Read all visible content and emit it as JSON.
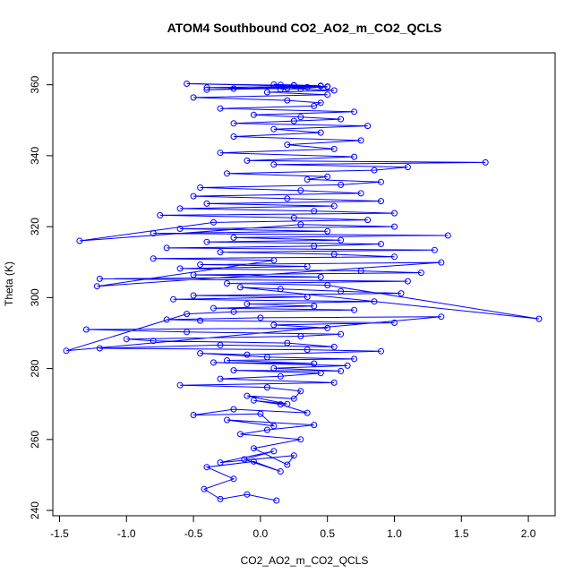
{
  "chart_data": {
    "type": "scatter",
    "title": "ATOM4 Southbound CO2_AO2_m_CO2_QCLS",
    "xlabel": "CO2_AO2_m_CO2_QCLS",
    "ylabel": "Theta (K)",
    "xlim": [
      -1.55,
      2.2
    ],
    "ylim": [
      238.5,
      369
    ],
    "xticks": [
      -1.5,
      -1.0,
      -0.5,
      0.0,
      0.5,
      1.0,
      1.5,
      2.0
    ],
    "xtick_labels": [
      "-1.5",
      "-1.0",
      "-0.5",
      "0.0",
      "0.5",
      "1.0",
      "1.5",
      "2.0"
    ],
    "yticks": [
      240,
      260,
      280,
      300,
      320,
      340,
      360
    ],
    "ytick_labels": [
      "240",
      "260",
      "280",
      "300",
      "320",
      "340",
      "360"
    ],
    "grid": false,
    "series": [
      {
        "style": "line-and-points",
        "marker": "open-circle",
        "color": "#0000ff",
        "x": [
          0.12,
          -0.1,
          -0.3,
          -0.42,
          -0.2,
          -0.4,
          -0.05,
          0.15,
          -0.12,
          0.1,
          -0.3,
          0.25,
          0.2,
          -0.05,
          0.3,
          -0.15,
          0.05,
          0.4,
          -0.25,
          0.1,
          0.0,
          -0.5,
          -0.2,
          0.35,
          0.15,
          -0.05,
          0.2,
          -0.1,
          0.25,
          0.3,
          0.05,
          -0.6,
          0.55,
          -0.3,
          0.15,
          0.45,
          -0.2,
          0.6,
          0.1,
          0.65,
          -0.35,
          0.4,
          -0.25,
          0.7,
          0.05,
          -0.45,
          -0.1,
          0.9,
          0.35,
          -1.2,
          -0.3,
          0.55,
          0.2,
          -0.8,
          -1.0,
          0.3,
          0.6,
          -0.55,
          -1.3,
          0.5,
          0.1,
          1.0,
          -0.45,
          -0.7,
          0.0,
          1.35,
          -1.45,
          -0.55,
          -0.2,
          0.7,
          -0.35,
          0.4,
          -0.1,
          0.85,
          -0.65,
          0.35,
          -0.5,
          1.05,
          0.6,
          0.15,
          -0.15,
          2.08,
          0.5,
          -0.25,
          1.1,
          -1.2,
          0.45,
          -0.5,
          1.2,
          0.75,
          -0.6,
          0.35,
          -0.45,
          1.35,
          -1.22,
          0.1,
          -0.8,
          1.0,
          0.55,
          -0.3,
          1.3,
          -0.7,
          0.4,
          0.9,
          -0.4,
          0.6,
          -0.2,
          1.4,
          -0.8,
          0.5,
          -0.6,
          1.0,
          0.3,
          -1.35,
          -0.35,
          0.8,
          0.25,
          -0.75,
          1.0,
          0.4,
          -0.6,
          0.55,
          -0.4,
          0.9,
          0.2,
          -0.5,
          0.75,
          0.3,
          -0.45,
          0.6,
          0.9,
          0.35,
          0.5,
          -0.25,
          0.85,
          1.1,
          0.1,
          1.68,
          -0.1,
          0.7,
          -0.3,
          0.55,
          0.2,
          0.75,
          -0.2,
          0.45,
          0.1,
          0.8,
          -0.2,
          0.25,
          0.6,
          0.3,
          -0.05,
          0.7,
          -0.3,
          0.4,
          0.45,
          0.2,
          -0.5,
          0.5,
          0.05,
          0.55,
          0.3,
          -0.4,
          0.45,
          0.15,
          0.5,
          -0.2,
          0.35,
          0.1,
          0.45,
          -0.4,
          0.2,
          0.25,
          -0.55,
          0.5,
          0.15,
          0.25
        ],
        "y": [
          242.8,
          244.5,
          243.2,
          246.0,
          248.9,
          252.2,
          253.8,
          251.0,
          254.4,
          256.7,
          253.5,
          255.5,
          252.9,
          257.5,
          260.0,
          261.5,
          262.7,
          264.1,
          265.5,
          263.8,
          267.2,
          266.9,
          268.5,
          267.5,
          269.9,
          271.0,
          270.0,
          272.3,
          271.5,
          273.6,
          274.7,
          275.3,
          276.0,
          277.1,
          277.8,
          278.7,
          279.5,
          279.3,
          280.1,
          280.8,
          281.7,
          281.4,
          282.3,
          282.7,
          283.2,
          284.3,
          283.9,
          284.9,
          285.3,
          285.7,
          286.6,
          286.1,
          287.2,
          287.8,
          288.3,
          289.1,
          289.7,
          290.3,
          291.0,
          291.4,
          292.3,
          292.9,
          293.5,
          293.8,
          294.3,
          294.6,
          285.0,
          295.4,
          296.0,
          296.5,
          297.0,
          297.6,
          298.2,
          298.9,
          299.5,
          300.2,
          300.6,
          301.2,
          301.8,
          302.4,
          302.9,
          294.0,
          303.5,
          304.0,
          304.6,
          305.3,
          305.8,
          306.4,
          307.0,
          307.5,
          308.2,
          308.8,
          309.3,
          309.9,
          303.2,
          310.5,
          311.0,
          311.5,
          312.2,
          312.8,
          313.4,
          314.0,
          314.5,
          315.1,
          315.7,
          316.2,
          316.9,
          317.5,
          318.1,
          318.7,
          319.4,
          320.0,
          320.6,
          316.0,
          321.2,
          321.9,
          322.5,
          323.2,
          323.8,
          324.4,
          325.1,
          325.8,
          326.5,
          327.2,
          327.9,
          328.6,
          329.4,
          330.2,
          331.0,
          331.8,
          332.6,
          333.3,
          334.1,
          335.0,
          335.9,
          336.8,
          337.5,
          338.1,
          338.6,
          339.7,
          340.8,
          341.9,
          343.1,
          344.3,
          345.4,
          346.5,
          347.5,
          348.4,
          349.1,
          349.8,
          350.3,
          350.9,
          351.5,
          352.4,
          353.3,
          354.0,
          354.9,
          355.6,
          356.4,
          357.2,
          357.9,
          358.4,
          358.8,
          359.2,
          359.6,
          360.0,
          359.5,
          358.9,
          359.3,
          360.1,
          359.7,
          358.6,
          359.0,
          359.8,
          360.3,
          359.4,
          358.7,
          359.9
        ]
      }
    ]
  }
}
